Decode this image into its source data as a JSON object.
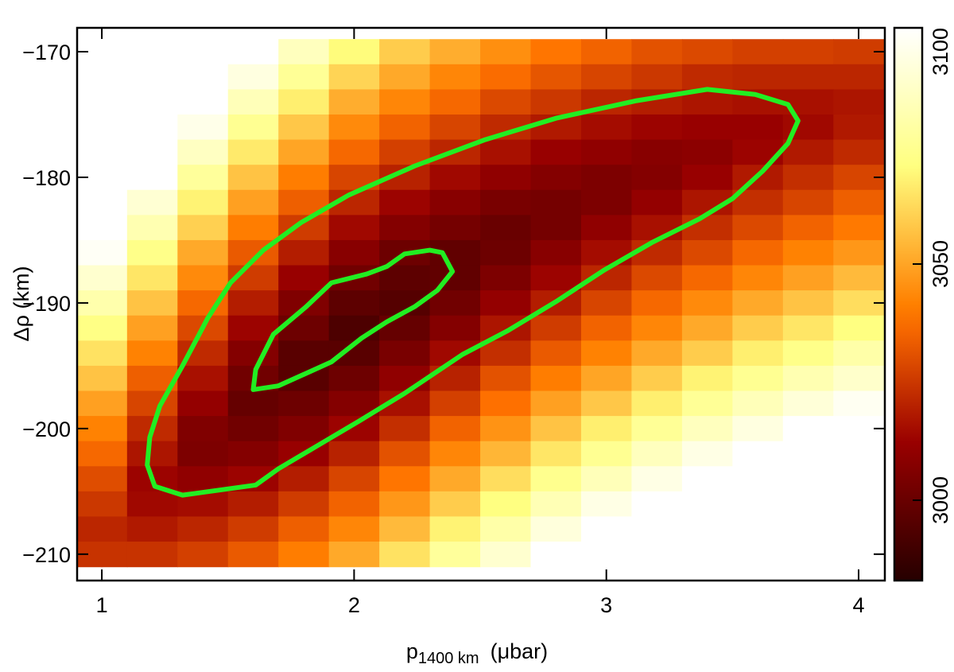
{
  "chart_data": {
    "type": "heatmap",
    "xlabel": {
      "main": "p",
      "sub": "1400 km",
      "unit": "(μbar)"
    },
    "ylabel": "Δρ (km)",
    "x": [
      1.0,
      1.2,
      1.4,
      1.6,
      1.8,
      2.0,
      2.2,
      2.4,
      2.6,
      2.8,
      3.0,
      3.2,
      3.4,
      3.6,
      3.8,
      4.0
    ],
    "y": [
      -170,
      -172,
      -174,
      -176,
      -178,
      -180,
      -182,
      -184,
      -186,
      -188,
      -190,
      -192,
      -194,
      -196,
      -198,
      -200,
      -202,
      -204,
      -206,
      -208,
      -210
    ],
    "z": [
      [
        null,
        null,
        null,
        3103,
        3085,
        3070,
        3059,
        3052,
        3045,
        3039,
        3035,
        3031,
        3029,
        3027,
        3027,
        3026
      ],
      [
        null,
        null,
        3114,
        3093,
        3076,
        3061,
        3051,
        3043,
        3037,
        3032,
        3028,
        3025,
        3022,
        3021,
        3021,
        3021
      ],
      [
        null,
        null,
        3104,
        3084,
        3067,
        3052,
        3043,
        3036,
        3029,
        3025,
        3021,
        3019,
        3017,
        3016,
        3016,
        3017
      ],
      [
        null,
        null,
        3095,
        3075,
        3058,
        3044,
        3035,
        3028,
        3022,
        3018,
        3015,
        3013,
        3012,
        3012,
        3014,
        3018
      ],
      [
        null,
        3109,
        3086,
        3066,
        3050,
        3036,
        3027,
        3021,
        3016,
        3012,
        3010,
        3008,
        3009,
        3013,
        3018,
        3022
      ],
      [
        3126,
        3100,
        3077,
        3057,
        3041,
        3028,
        3020,
        3014,
        3010,
        3007,
        3005,
        3007,
        3012,
        3018,
        3023,
        3028
      ],
      [
        3117,
        3090,
        3068,
        3049,
        3034,
        3021,
        3013,
        3008,
        3004,
        3003,
        3005,
        3011,
        3017,
        3023,
        3028,
        3034
      ],
      [
        3107,
        3082,
        3060,
        3041,
        3026,
        3014,
        3007,
        3003,
        3000,
        3003,
        3010,
        3016,
        3023,
        3029,
        3035,
        3040
      ],
      [
        3098,
        3073,
        3051,
        3033,
        3019,
        3008,
        3001,
        2998,
        3001,
        3008,
        3015,
        3022,
        3029,
        3036,
        3042,
        3047
      ],
      [
        3089,
        3065,
        3044,
        3026,
        3012,
        3002,
        2997,
        2998,
        3005,
        3013,
        3021,
        3029,
        3036,
        3043,
        3049,
        3055
      ],
      [
        3081,
        3057,
        3036,
        3019,
        3006,
        2997,
        2995,
        3002,
        3011,
        3019,
        3028,
        3036,
        3044,
        3051,
        3057,
        3063
      ],
      [
        3072,
        3049,
        3029,
        3013,
        3001,
        2993,
        2999,
        3007,
        3017,
        3026,
        3035,
        3043,
        3051,
        3059,
        3065,
        3071
      ],
      [
        3064,
        3042,
        3022,
        3007,
        2996,
        2996,
        3004,
        3014,
        3023,
        3033,
        3042,
        3051,
        3059,
        3067,
        3073,
        3080
      ],
      [
        3057,
        3034,
        3016,
        3002,
        2996,
        3001,
        3010,
        3020,
        3031,
        3041,
        3050,
        3059,
        3068,
        3075,
        3082,
        3088
      ],
      [
        3049,
        3028,
        3011,
        2999,
        3001,
        3007,
        3016,
        3027,
        3038,
        3049,
        3058,
        3067,
        3076,
        3084,
        3091,
        3097
      ],
      [
        3042,
        3022,
        3006,
        3002,
        3006,
        3013,
        3023,
        3035,
        3046,
        3057,
        3067,
        3076,
        3085,
        3093,
        3100,
        3106
      ],
      [
        3036,
        3017,
        3005,
        3007,
        3012,
        3020,
        3031,
        3043,
        3054,
        3065,
        3075,
        3085,
        3094,
        3102,
        3109,
        3116
      ],
      [
        3030,
        3013,
        3010,
        3013,
        3019,
        3028,
        3039,
        3051,
        3063,
        3074,
        3084,
        3094,
        3104,
        3112,
        3119,
        3126
      ],
      [
        3025,
        3014,
        3015,
        3019,
        3026,
        3035,
        3047,
        3059,
        3071,
        3083,
        3094,
        3103,
        3113,
        3121,
        3129,
        null
      ],
      [
        3021,
        3018,
        3021,
        3026,
        3034,
        3043,
        3055,
        3068,
        3080,
        3092,
        3103,
        3113,
        3123,
        null,
        null,
        null
      ],
      [
        3024,
        3024,
        3027,
        3033,
        3041,
        3051,
        3064,
        3077,
        3089,
        3101,
        3113,
        3123,
        null,
        null,
        null,
        null
      ]
    ],
    "colormap": "hot",
    "clim": [
      2983,
      3100
    ],
    "cticks": [
      3000,
      3050,
      3100
    ],
    "xlim": [
      0.902,
      4.104
    ],
    "ylim": [
      -212.1,
      -168.1
    ],
    "xticks": [
      1,
      2,
      3,
      4
    ],
    "yticks": [
      {
        "value": -170,
        "label": "−170"
      },
      {
        "value": -180,
        "label": "−180"
      },
      {
        "value": -190,
        "label": "−190"
      },
      {
        "value": -200,
        "label": "−200"
      },
      {
        "value": -210,
        "label": "−210"
      }
    ],
    "contours": [
      {
        "color": "#22ee22",
        "x": [
          1.21,
          1.18,
          1.19,
          1.23,
          1.32,
          1.42,
          1.51,
          1.64,
          1.79,
          1.98,
          2.24,
          2.52,
          2.8,
          3.12,
          3.4,
          3.59,
          3.72,
          3.76,
          3.72,
          3.62,
          3.5,
          3.37,
          3.18,
          2.99,
          2.8,
          2.61,
          2.43,
          2.2,
          2.02,
          1.86,
          1.7,
          1.61,
          1.32
        ],
        "y": [
          -204.6,
          -202.9,
          -200.7,
          -198.2,
          -195.0,
          -191.2,
          -188.4,
          -185.8,
          -183.6,
          -181.4,
          -179.1,
          -177.0,
          -175.3,
          -173.9,
          -173.0,
          -173.4,
          -174.2,
          -175.5,
          -177.3,
          -179.5,
          -181.7,
          -183.3,
          -185.2,
          -187.4,
          -189.9,
          -192.2,
          -194.1,
          -197.2,
          -199.4,
          -201.3,
          -203.2,
          -204.5,
          -205.3
        ]
      },
      {
        "color": "#22ee22",
        "x": [
          1.6,
          1.61,
          1.68,
          1.81,
          1.91,
          2.05,
          2.13,
          2.2,
          2.3,
          2.35,
          2.39,
          2.33,
          2.24,
          2.13,
          2.03,
          1.91,
          1.7
        ],
        "y": [
          -196.9,
          -195.3,
          -192.5,
          -190.3,
          -188.4,
          -187.7,
          -187.1,
          -186.1,
          -185.8,
          -186.0,
          -187.5,
          -189.0,
          -190.3,
          -191.5,
          -192.8,
          -194.7,
          -196.6
        ]
      }
    ]
  }
}
